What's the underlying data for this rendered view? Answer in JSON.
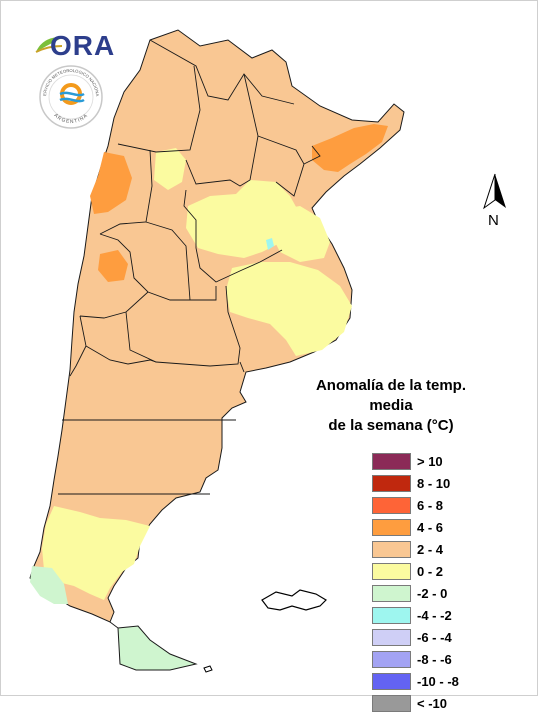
{
  "logos": {
    "ora_text": "ORA",
    "seal_text_top": "SERVICIO METEOROLOGICO NACIONAL",
    "seal_text_bottom": "ARGENTINA"
  },
  "north_arrow": {
    "label": "N"
  },
  "legend": {
    "title_line1": "Anomalía de la temp. media",
    "title_line2": "de la semana (°C)",
    "items": [
      {
        "label": "> 10",
        "color": "#8b2a57"
      },
      {
        "label": "8 - 10",
        "color": "#c0280e"
      },
      {
        "label": "6 - 8",
        "color": "#fe6437"
      },
      {
        "label": "4 - 6",
        "color": "#fe9d3f"
      },
      {
        "label": "2 - 4",
        "color": "#f9c793"
      },
      {
        "label": "0 - 2",
        "color": "#fbfba0"
      },
      {
        "label": "-2 - 0",
        "color": "#cff5cf"
      },
      {
        "label": "-4 - -2",
        "color": "#9ef6ef"
      },
      {
        "label": "-6 - -4",
        "color": "#cfcff6"
      },
      {
        "label": "-8 - -6",
        "color": "#a3a3f3"
      },
      {
        "label": "-10 - -8",
        "color": "#6363f3"
      },
      {
        "label": "< -10",
        "color": "#999999"
      }
    ]
  },
  "map": {
    "dominant_class": "2 - 4",
    "region_colors": {
      "land": "#f9c793",
      "warm": "#fe9d3f",
      "mild": "#fbfba0",
      "cool": "#cff5cf",
      "boundary": "#1a1a1a"
    }
  }
}
